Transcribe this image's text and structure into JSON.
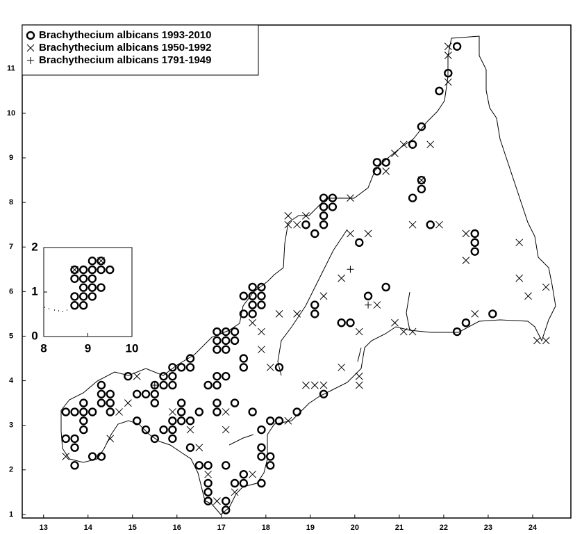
{
  "chart_data": [
    {
      "type": "scatter",
      "legend": "upper left",
      "grid": false,
      "xlim": [
        12.52,
        24.86
      ],
      "ylim": [
        0.92,
        11.98
      ],
      "xticks": [
        13,
        14,
        15,
        16,
        17,
        18,
        19,
        20,
        21,
        22,
        23,
        24
      ],
      "yticks": [
        1,
        2,
        3,
        4,
        5,
        6,
        7,
        8,
        9,
        10,
        11
      ],
      "series": [
        {
          "name": "Brachythecium albicans 1993-2010",
          "marker": "circle",
          "color": "#000000",
          "x": [
            13.5,
            13.5,
            13.7,
            13.7,
            13.7,
            13.7,
            13.9,
            13.9,
            13.9,
            13.9,
            14.1,
            14.1,
            14.3,
            14.3,
            14.3,
            14.3,
            14.5,
            14.5,
            14.5,
            14.9,
            15.1,
            15.1,
            15.3,
            15.3,
            15.5,
            15.5,
            15.5,
            15.5,
            15.7,
            15.7,
            15.7,
            15.9,
            15.9,
            15.9,
            15.9,
            15.9,
            15.9,
            16.1,
            16.1,
            16.1,
            16.1,
            16.3,
            16.3,
            16.3,
            16.3,
            16.5,
            16.5,
            16.7,
            16.7,
            16.7,
            16.7,
            16.7,
            16.9,
            16.9,
            16.9,
            16.9,
            16.9,
            16.9,
            16.9,
            17.1,
            17.1,
            17.1,
            17.1,
            17.1,
            17.1,
            17.1,
            17.3,
            17.3,
            17.3,
            17.3,
            17.5,
            17.5,
            17.5,
            17.5,
            17.5,
            17.5,
            17.7,
            17.7,
            17.7,
            17.7,
            17.7,
            17.9,
            17.9,
            17.9,
            17.9,
            17.9,
            17.9,
            17.9,
            18.1,
            18.1,
            18.1,
            18.3,
            18.3,
            18.7,
            18.9,
            19.1,
            19.1,
            19.1,
            19.3,
            19.3,
            19.3,
            19.3,
            19.3,
            19.5,
            19.5,
            19.7,
            19.9,
            20.1,
            20.3,
            20.5,
            20.5,
            20.7,
            20.7,
            21.3,
            21.3,
            21.5,
            21.5,
            21.5,
            21.7,
            21.9,
            22.1,
            22.3,
            22.3,
            22.5,
            22.7,
            22.7,
            22.7,
            23.1
          ],
          "y": [
            3.3,
            2.7,
            3.3,
            2.7,
            2.5,
            2.1,
            3.5,
            3.3,
            3.1,
            2.9,
            3.3,
            2.3,
            3.9,
            3.7,
            3.5,
            2.3,
            3.7,
            3.5,
            3.3,
            4.1,
            3.1,
            3.7,
            3.7,
            2.9,
            3.9,
            3.7,
            3.5,
            2.7,
            4.1,
            3.9,
            2.9,
            4.3,
            4.1,
            3.9,
            3.1,
            2.9,
            2.7,
            4.3,
            3.5,
            3.3,
            3.1,
            4.5,
            4.3,
            3.1,
            2.5,
            3.3,
            2.1,
            3.9,
            2.1,
            1.7,
            1.5,
            1.3,
            5.1,
            4.9,
            4.7,
            4.1,
            3.9,
            3.5,
            3.3,
            5.1,
            4.9,
            4.7,
            4.1,
            2.1,
            1.3,
            1.1,
            5.1,
            4.9,
            3.5,
            1.7,
            5.9,
            5.5,
            4.5,
            4.3,
            1.9,
            1.7,
            6.1,
            5.9,
            5.7,
            5.5,
            3.3,
            6.1,
            5.9,
            5.7,
            2.9,
            2.5,
            2.3,
            1.7,
            3.1,
            2.3,
            2.1,
            4.3,
            3.1,
            3.3,
            7.5,
            7.3,
            5.7,
            5.5,
            8.1,
            7.9,
            7.7,
            7.5,
            3.7,
            8.1,
            7.9,
            5.3,
            5.3,
            7.1,
            5.9,
            8.9,
            8.7,
            8.9,
            6.1,
            9.3,
            8.1,
            9.7,
            8.5,
            8.3,
            7.5,
            10.5,
            10.9,
            11.5,
            5.1,
            5.3,
            7.3,
            7.1,
            6.9,
            5.5
          ]
        },
        {
          "name": "Brachythecium albicans 1950-1992",
          "marker": "x",
          "color": "#000000",
          "x": [
            13.5,
            14.5,
            14.7,
            14.9,
            15.1,
            15.9,
            16.3,
            16.5,
            16.7,
            16.9,
            17.1,
            17.1,
            17.3,
            17.7,
            17.7,
            17.9,
            17.9,
            18.1,
            18.3,
            18.5,
            18.5,
            18.5,
            18.7,
            18.7,
            18.9,
            18.9,
            19.1,
            19.3,
            19.3,
            19.7,
            19.7,
            19.9,
            19.9,
            20.1,
            20.1,
            20.1,
            20.3,
            20.5,
            20.7,
            20.9,
            20.9,
            21.1,
            21.1,
            21.3,
            21.3,
            21.5,
            21.7,
            21.9,
            22.1,
            22.1,
            22.1,
            22.5,
            22.5,
            22.7,
            23.7,
            23.7,
            23.9,
            24.1,
            24.3,
            24.3
          ],
          "y": [
            2.3,
            2.7,
            3.3,
            3.5,
            4.1,
            3.3,
            2.9,
            2.5,
            1.9,
            1.3,
            2.9,
            3.3,
            1.5,
            1.9,
            5.3,
            5.1,
            4.7,
            4.3,
            5.5,
            3.1,
            7.7,
            7.5,
            7.5,
            5.5,
            7.7,
            3.9,
            3.9,
            5.9,
            3.9,
            6.3,
            4.3,
            8.1,
            7.3,
            5.1,
            4.1,
            3.9,
            7.3,
            5.7,
            8.7,
            5.3,
            9.1,
            9.3,
            5.1,
            7.5,
            5.1,
            8.5,
            9.3,
            7.5,
            11.5,
            11.3,
            10.7,
            6.7,
            7.3,
            5.5,
            7.1,
            6.3,
            5.9,
            4.9,
            6.1,
            4.9
          ]
        },
        {
          "name": "Brachythecium albicans 1791-1949",
          "marker": "plus",
          "color": "#000000",
          "x": [
            15.5,
            19.9,
            20.3
          ],
          "y": [
            3.9,
            6.5,
            5.7
          ]
        }
      ]
    },
    {
      "type": "scatter",
      "grid": false,
      "xlim": [
        8,
        10
      ],
      "ylim": [
        0,
        2
      ],
      "xticks": [
        8,
        9,
        10
      ],
      "yticks": [
        0,
        1,
        2
      ],
      "series": [
        {
          "marker": "circle",
          "color": "#000000",
          "x": [
            8.7,
            8.7,
            8.7,
            8.7,
            8.9,
            8.9,
            8.9,
            8.9,
            8.9,
            9.1,
            9.1,
            9.1,
            9.1,
            9.1,
            9.3,
            9.3,
            9.3,
            9.5
          ],
          "y": [
            1.5,
            1.3,
            0.9,
            0.7,
            1.5,
            1.3,
            1.1,
            0.9,
            0.7,
            1.7,
            1.5,
            1.3,
            1.1,
            0.9,
            1.7,
            1.5,
            1.1,
            1.5
          ]
        },
        {
          "marker": "x",
          "color": "#000000",
          "x": [
            8.7,
            9.3
          ],
          "y": [
            1.5,
            1.7
          ]
        }
      ]
    }
  ]
}
